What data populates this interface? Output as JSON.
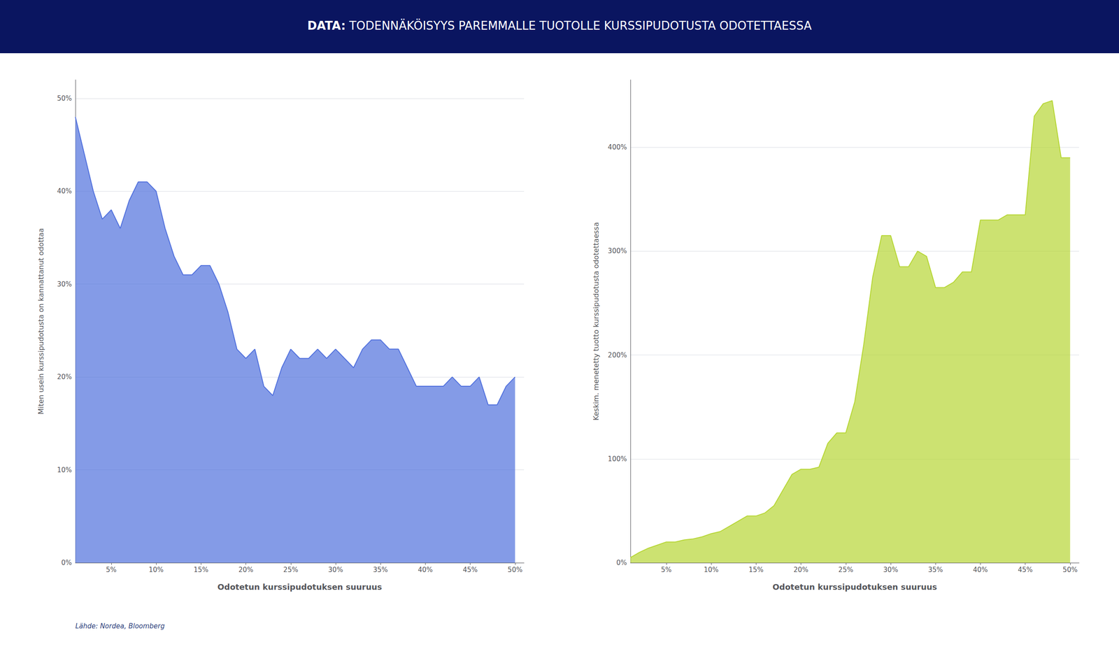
{
  "title": "DATA: TODENNÄKÖISYYS PAREMMALLE TUOTOLLE KURSSIPUDOTUSTA ODOTETTAESSA",
  "annotations": [
    "Lähde: Nordea, Bloomberg"
  ],
  "chart_data": [
    {
      "type": "area",
      "ylabel": "Miten usein kurssipudotusta on kannattanut odottaa",
      "xlabel": "Odotetun kurssipudotuksen suuruus",
      "x": [
        1,
        2,
        3,
        4,
        5,
        6,
        7,
        8,
        9,
        10,
        11,
        12,
        13,
        14,
        15,
        16,
        17,
        18,
        19,
        20,
        21,
        22,
        23,
        24,
        25,
        26,
        27,
        28,
        29,
        30,
        31,
        32,
        33,
        34,
        35,
        36,
        37,
        38,
        39,
        40,
        41,
        42,
        43,
        44,
        45,
        46,
        47,
        48,
        49,
        50
      ],
      "values": [
        0.48,
        0.44,
        0.4,
        0.37,
        0.38,
        0.36,
        0.39,
        0.41,
        0.41,
        0.4,
        0.36,
        0.33,
        0.31,
        0.31,
        0.32,
        0.32,
        0.3,
        0.27,
        0.23,
        0.22,
        0.23,
        0.19,
        0.18,
        0.21,
        0.23,
        0.22,
        0.22,
        0.23,
        0.22,
        0.23,
        0.22,
        0.21,
        0.23,
        0.24,
        0.24,
        0.23,
        0.23,
        0.21,
        0.19,
        0.19,
        0.19,
        0.19,
        0.2,
        0.19,
        0.19,
        0.2,
        0.17,
        0.17,
        0.19,
        0.2
      ],
      "xlim": [
        1,
        51
      ],
      "xticks": [
        {
          "value": 5,
          "label": "5%"
        },
        {
          "value": 10,
          "label": "10%"
        },
        {
          "value": 15,
          "label": "15%"
        },
        {
          "value": 20,
          "label": "20%"
        },
        {
          "value": 25,
          "label": "25%"
        },
        {
          "value": 30,
          "label": "30%"
        },
        {
          "value": 35,
          "label": "35%"
        },
        {
          "value": 40,
          "label": "40%"
        },
        {
          "value": 45,
          "label": "45%"
        },
        {
          "value": 50,
          "label": "50%"
        }
      ],
      "ylim": [
        0,
        0.52
      ],
      "yticks": [
        {
          "value": 0.0,
          "label": "0%"
        },
        {
          "value": 0.1,
          "label": "10%"
        },
        {
          "value": 0.2,
          "label": "20%"
        },
        {
          "value": 0.3,
          "label": "30%"
        },
        {
          "value": 0.4,
          "label": "40%"
        },
        {
          "value": 0.5,
          "label": "50%"
        }
      ],
      "grid": true
    },
    {
      "type": "area",
      "ylabel": "Keskim. menetetty tuotto kurssipudotusta odotettaessa",
      "xlabel": "Odotetun kurssipudotuksen suuruus",
      "x": [
        1,
        2,
        3,
        4,
        5,
        6,
        7,
        8,
        9,
        10,
        11,
        12,
        13,
        14,
        15,
        16,
        17,
        18,
        19,
        20,
        21,
        22,
        23,
        24,
        25,
        26,
        27,
        28,
        29,
        30,
        31,
        32,
        33,
        34,
        35,
        36,
        37,
        38,
        39,
        40,
        41,
        42,
        43,
        44,
        45,
        46,
        47,
        48,
        49,
        50
      ],
      "values": [
        0.05,
        0.1,
        0.14,
        0.17,
        0.2,
        0.2,
        0.22,
        0.23,
        0.25,
        0.28,
        0.3,
        0.35,
        0.4,
        0.45,
        0.45,
        0.48,
        0.55,
        0.7,
        0.85,
        0.9,
        0.9,
        0.92,
        1.15,
        1.25,
        1.25,
        1.55,
        2.1,
        2.75,
        3.15,
        3.15,
        2.85,
        2.85,
        3.0,
        2.95,
        2.65,
        2.65,
        2.7,
        2.8,
        2.8,
        3.3,
        3.3,
        3.3,
        3.35,
        3.35,
        3.35,
        4.3,
        4.42,
        4.45,
        3.9,
        3.9
      ],
      "xlim": [
        1,
        51
      ],
      "xticks": [
        {
          "value": 5,
          "label": "5%"
        },
        {
          "value": 10,
          "label": "10%"
        },
        {
          "value": 15,
          "label": "15%"
        },
        {
          "value": 20,
          "label": "20%"
        },
        {
          "value": 25,
          "label": "25%"
        },
        {
          "value": 30,
          "label": "30%"
        },
        {
          "value": 35,
          "label": "35%"
        },
        {
          "value": 40,
          "label": "40%"
        },
        {
          "value": 45,
          "label": "45%"
        },
        {
          "value": 50,
          "label": "50%"
        }
      ],
      "ylim": [
        0,
        4.65
      ],
      "yticks": [
        {
          "value": 0.0,
          "label": "0%"
        },
        {
          "value": 1.0,
          "label": "100%"
        },
        {
          "value": 2.0,
          "label": "200%"
        },
        {
          "value": 3.0,
          "label": "300%"
        },
        {
          "value": 4.0,
          "label": "400%"
        }
      ],
      "grid": true
    }
  ]
}
